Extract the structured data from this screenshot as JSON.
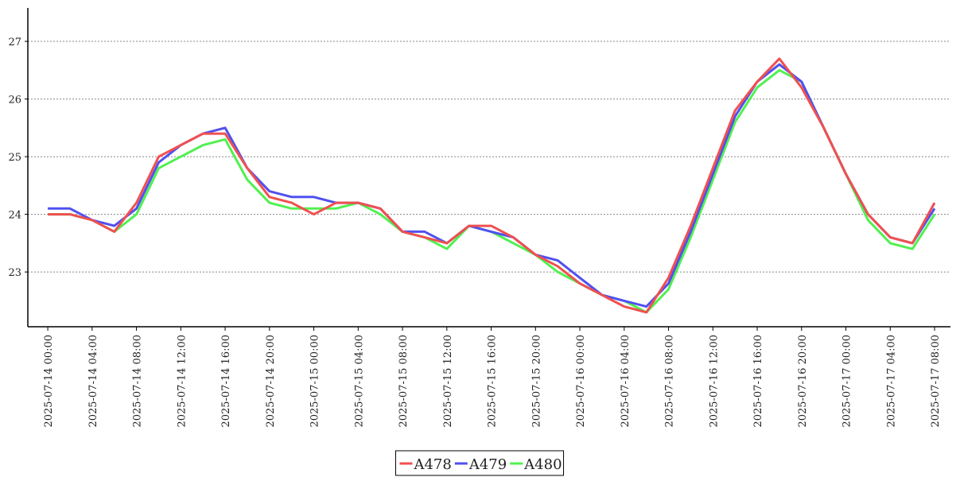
{
  "chart_data": {
    "type": "line",
    "x": [
      "2025-07-14 00:00",
      "2025-07-14 02:00",
      "2025-07-14 04:00",
      "2025-07-14 06:00",
      "2025-07-14 08:00",
      "2025-07-14 10:00",
      "2025-07-14 12:00",
      "2025-07-14 14:00",
      "2025-07-14 16:00",
      "2025-07-14 18:00",
      "2025-07-14 20:00",
      "2025-07-14 22:00",
      "2025-07-15 00:00",
      "2025-07-15 02:00",
      "2025-07-15 04:00",
      "2025-07-15 06:00",
      "2025-07-15 08:00",
      "2025-07-15 10:00",
      "2025-07-15 12:00",
      "2025-07-15 14:00",
      "2025-07-15 16:00",
      "2025-07-15 18:00",
      "2025-07-15 20:00",
      "2025-07-15 22:00",
      "2025-07-16 00:00",
      "2025-07-16 02:00",
      "2025-07-16 04:00",
      "2025-07-16 06:00",
      "2025-07-16 08:00",
      "2025-07-16 10:00",
      "2025-07-16 12:00",
      "2025-07-16 14:00",
      "2025-07-16 16:00",
      "2025-07-16 18:00",
      "2025-07-16 20:00",
      "2025-07-16 22:00",
      "2025-07-17 00:00",
      "2025-07-17 02:00",
      "2025-07-17 04:00",
      "2025-07-17 06:00",
      "2025-07-17 08:00"
    ],
    "series": [
      {
        "name": "A478",
        "color": "#f05050",
        "values": [
          24.0,
          24.0,
          23.9,
          23.7,
          24.2,
          25.0,
          25.2,
          25.4,
          25.4,
          24.8,
          24.3,
          24.2,
          24.0,
          24.2,
          24.2,
          24.1,
          23.7,
          23.6,
          23.5,
          23.8,
          23.8,
          23.6,
          23.3,
          23.1,
          22.8,
          22.6,
          22.4,
          22.3,
          22.9,
          23.8,
          24.8,
          25.8,
          26.3,
          26.7,
          26.2,
          25.5,
          24.7,
          24.0,
          23.6,
          23.5,
          24.2
        ]
      },
      {
        "name": "A479",
        "color": "#5050f0",
        "values": [
          24.1,
          24.1,
          23.9,
          23.8,
          24.1,
          24.9,
          25.2,
          25.4,
          25.5,
          24.8,
          24.4,
          24.3,
          24.3,
          24.2,
          24.2,
          24.1,
          23.7,
          23.7,
          23.5,
          23.8,
          23.7,
          23.6,
          23.3,
          23.2,
          22.9,
          22.6,
          22.5,
          22.4,
          22.8,
          23.7,
          24.7,
          25.7,
          26.3,
          26.6,
          26.3,
          25.5,
          24.7,
          24.0,
          23.6,
          23.5,
          24.1
        ]
      },
      {
        "name": "A480",
        "color": "#50f050",
        "values": [
          24.0,
          24.0,
          23.9,
          23.7,
          24.0,
          24.8,
          25.0,
          25.2,
          25.3,
          24.6,
          24.2,
          24.1,
          24.1,
          24.1,
          24.2,
          24.0,
          23.7,
          23.6,
          23.4,
          23.8,
          23.7,
          23.5,
          23.3,
          23.0,
          22.8,
          22.6,
          22.5,
          22.3,
          22.7,
          23.6,
          24.6,
          25.6,
          26.2,
          26.5,
          26.3,
          25.5,
          24.7,
          23.9,
          23.5,
          23.4,
          24.0
        ]
      }
    ],
    "xlim": [
      "2025-07-13 22:12",
      "2025-07-17 09:26"
    ],
    "xticks": [
      "2025-07-14 00:00",
      "2025-07-14 04:00",
      "2025-07-14 08:00",
      "2025-07-14 12:00",
      "2025-07-14 16:00",
      "2025-07-14 20:00",
      "2025-07-15 00:00",
      "2025-07-15 04:00",
      "2025-07-15 08:00",
      "2025-07-15 12:00",
      "2025-07-15 16:00",
      "2025-07-15 20:00",
      "2025-07-16 00:00",
      "2025-07-16 04:00",
      "2025-07-16 08:00",
      "2025-07-16 12:00",
      "2025-07-16 16:00",
      "2025-07-16 20:00",
      "2025-07-17 00:00",
      "2025-07-17 04:00",
      "2025-07-17 08:00"
    ],
    "ylim": [
      22.05,
      27.58
    ],
    "yticks": [
      23,
      24,
      25,
      26,
      27
    ],
    "grid": true,
    "legend": "bottom"
  }
}
